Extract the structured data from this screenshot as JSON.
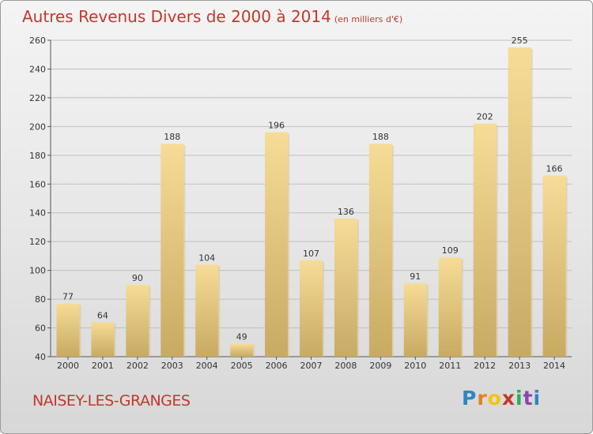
{
  "header": {
    "title": "Autres Revenus Divers de 2000 à 2014",
    "subtitle": "(en milliers d'€)"
  },
  "footer": {
    "commune": "NAISEY-LES-GRANGES",
    "logo_letters": [
      "P",
      "r",
      "o",
      "x",
      "i",
      "t",
      "i"
    ],
    "logo_colors": [
      "#2e86c1",
      "#e67e22",
      "#f1c40f",
      "#c0392b",
      "#27ae60",
      "#8e44ad",
      "#2e86c1"
    ]
  },
  "colors": {
    "bar_light": "#f6dc96",
    "bar_dark": "#c8aa62",
    "bar_shadow": "#d8c79a",
    "grid": "#bfbfbf",
    "title": "#c0392b"
  },
  "chart_data": {
    "type": "bar",
    "title": "Autres Revenus Divers de 2000 à 2014",
    "subtitle": "(en milliers d'€)",
    "xlabel": "",
    "ylabel": "",
    "ylim": [
      40,
      260
    ],
    "yticks": [
      40,
      60,
      80,
      100,
      120,
      140,
      160,
      180,
      200,
      220,
      240,
      260
    ],
    "grid": true,
    "categories": [
      "2000",
      "2001",
      "2002",
      "2003",
      "2004",
      "2005",
      "2006",
      "2007",
      "2008",
      "2009",
      "2010",
      "2011",
      "2012",
      "2013",
      "2014"
    ],
    "values": [
      77,
      64,
      90,
      188,
      104,
      49,
      196,
      107,
      136,
      188,
      91,
      109,
      202,
      255,
      166
    ]
  }
}
